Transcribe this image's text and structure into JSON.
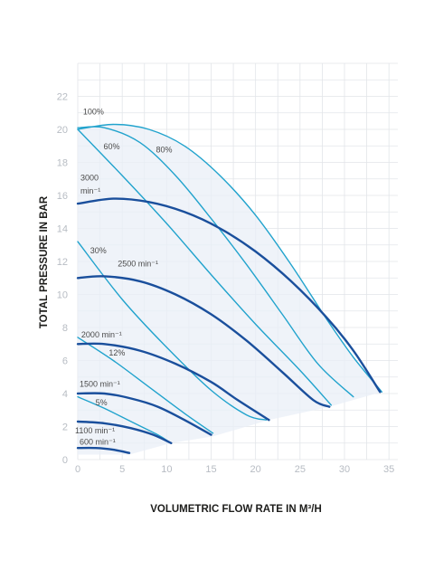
{
  "chart_data": {
    "type": "line",
    "xlabel": "VOLUMETRIC FLOW RATE IN M³/H",
    "ylabel": "TOTAL PRESSURE IN BAR",
    "xlim": [
      0,
      36
    ],
    "ylim": [
      0,
      24
    ],
    "x_ticks": [
      0,
      5,
      10,
      15,
      20,
      25,
      30,
      35
    ],
    "y_ticks": [
      0,
      2,
      4,
      6,
      8,
      10,
      12,
      14,
      16,
      18,
      20,
      22
    ],
    "grid": true,
    "colors": {
      "speed": "#1a4f9c",
      "efficiency": "#21a3cd",
      "grid": "#e2e5e9",
      "fill": "#e9eff7"
    },
    "speed_curves": [
      {
        "name": "3000 min⁻¹",
        "label_line1": "3000",
        "label_line2": "min⁻¹",
        "points": [
          [
            0,
            15.5
          ],
          [
            4,
            15.8
          ],
          [
            8,
            15.6
          ],
          [
            12,
            15
          ],
          [
            16,
            14
          ],
          [
            20,
            12.6
          ],
          [
            24,
            10.8
          ],
          [
            28,
            8.6
          ],
          [
            31,
            6.6
          ],
          [
            34,
            4.1
          ]
        ]
      },
      {
        "name": "2500 min⁻¹",
        "label": "2500 min⁻¹",
        "points": [
          [
            0,
            11
          ],
          [
            3,
            11.1
          ],
          [
            7,
            10.8
          ],
          [
            11,
            10
          ],
          [
            15,
            8.8
          ],
          [
            19,
            7.2
          ],
          [
            23,
            5.3
          ],
          [
            26.5,
            3.6
          ],
          [
            28.3,
            3.2
          ]
        ]
      },
      {
        "name": "2000 min⁻¹",
        "label": "2000 min⁻¹",
        "points": [
          [
            0,
            7
          ],
          [
            3,
            7
          ],
          [
            7,
            6.6
          ],
          [
            11,
            5.8
          ],
          [
            15,
            4.7
          ],
          [
            18,
            3.6
          ],
          [
            21.5,
            2.4
          ]
        ]
      },
      {
        "name": "1500 min⁻¹",
        "label": "1500 min⁻¹",
        "points": [
          [
            0,
            4
          ],
          [
            3,
            4
          ],
          [
            6,
            3.7
          ],
          [
            9,
            3.2
          ],
          [
            12,
            2.4
          ],
          [
            15,
            1.5
          ]
        ]
      },
      {
        "name": "1100 min⁻¹",
        "label": "1100 min⁻¹",
        "points": [
          [
            0,
            2.3
          ],
          [
            3,
            2.2
          ],
          [
            6,
            1.9
          ],
          [
            8.5,
            1.5
          ],
          [
            10.5,
            1
          ]
        ]
      },
      {
        "name": "600 min⁻¹",
        "label": "600 min⁻¹",
        "points": [
          [
            0,
            0.7
          ],
          [
            2,
            0.7
          ],
          [
            4,
            0.6
          ],
          [
            5.8,
            0.4
          ]
        ]
      }
    ],
    "efficiency_curves": [
      {
        "name": "100%",
        "label": "100%",
        "points": [
          [
            0,
            20
          ],
          [
            4,
            20.3
          ],
          [
            8,
            20
          ],
          [
            12,
            19
          ],
          [
            16,
            17.2
          ],
          [
            20,
            14.8
          ],
          [
            24,
            11.8
          ],
          [
            28,
            8.5
          ],
          [
            31,
            6.2
          ],
          [
            34.2,
            4.1
          ]
        ]
      },
      {
        "name": "80%",
        "label": "80%",
        "points": [
          [
            0,
            20.1
          ],
          [
            3,
            20.1
          ],
          [
            7,
            19.2
          ],
          [
            11,
            17.2
          ],
          [
            15,
            14.6
          ],
          [
            19,
            11.8
          ],
          [
            23,
            8.8
          ],
          [
            27,
            5.8
          ],
          [
            31,
            3.8
          ]
        ]
      },
      {
        "name": "60%",
        "label": "60%",
        "points": [
          [
            0,
            20
          ],
          [
            5,
            17.2
          ],
          [
            10,
            14.3
          ],
          [
            15,
            11.2
          ],
          [
            20,
            8.2
          ],
          [
            25,
            5.4
          ],
          [
            28.5,
            3.3
          ]
        ]
      },
      {
        "name": "30%",
        "label": "30%",
        "points": [
          [
            0,
            13.2
          ],
          [
            5,
            9.7
          ],
          [
            10,
            6.8
          ],
          [
            15,
            4.2
          ],
          [
            19,
            2.7
          ],
          [
            21.2,
            2.4
          ]
        ]
      },
      {
        "name": "12%",
        "label": "12%",
        "points": [
          [
            0,
            7.4
          ],
          [
            4,
            6
          ],
          [
            8,
            4.4
          ],
          [
            12,
            2.8
          ],
          [
            15.2,
            1.6
          ]
        ]
      },
      {
        "name": "5%",
        "label": "5%",
        "points": [
          [
            0,
            3.8
          ],
          [
            3,
            3.1
          ],
          [
            6,
            2.3
          ],
          [
            9,
            1.5
          ],
          [
            10.2,
            1.1
          ]
        ]
      }
    ]
  }
}
